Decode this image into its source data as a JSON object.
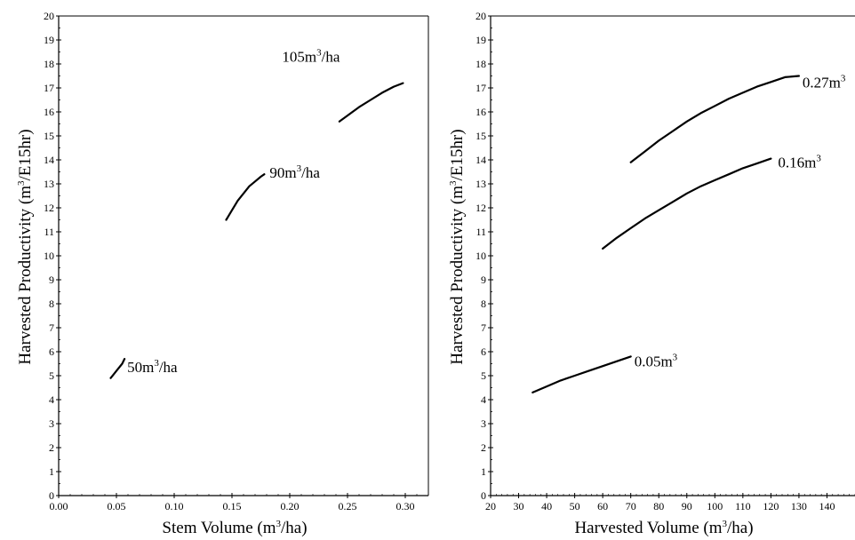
{
  "chart_data": [
    {
      "type": "line",
      "title": "",
      "xlabel": "Stem Volume (m",
      "xlabel_sup": "3",
      "xlabel_tail": "/ha)",
      "ylabel": "Harvested Productivity (m",
      "ylabel_sup": "3",
      "ylabel_tail": "/E15hr)",
      "xlim": [
        0.0,
        0.32
      ],
      "ylim": [
        0,
        20
      ],
      "x_ticks": [
        "0.00",
        "0.05",
        "0.10",
        "0.15",
        "0.20",
        "0.25",
        "0.30"
      ],
      "y_ticks": [
        "0",
        "1",
        "2",
        "3",
        "4",
        "5",
        "6",
        "7",
        "8",
        "9",
        "10",
        "11",
        "12",
        "13",
        "14",
        "15",
        "16",
        "17",
        "18",
        "19",
        "20"
      ],
      "grid": false,
      "series": [
        {
          "label": "50m",
          "label_sup": "3",
          "label_tail": "/ha",
          "x": [
            0.045,
            0.05,
            0.055,
            0.057
          ],
          "y": [
            4.9,
            5.2,
            5.5,
            5.7
          ]
        },
        {
          "label": "90m",
          "label_sup": "3",
          "label_tail": "/ha",
          "x": [
            0.145,
            0.15,
            0.155,
            0.16,
            0.165,
            0.17,
            0.175,
            0.178
          ],
          "y": [
            11.5,
            11.9,
            12.3,
            12.6,
            12.9,
            13.1,
            13.3,
            13.4
          ]
        },
        {
          "label": "105m",
          "label_sup": "3",
          "label_tail": "/ha",
          "x": [
            0.243,
            0.25,
            0.26,
            0.27,
            0.28,
            0.29,
            0.298
          ],
          "y": [
            15.6,
            15.85,
            16.2,
            16.5,
            16.8,
            17.05,
            17.2
          ]
        }
      ]
    },
    {
      "type": "line",
      "title": "",
      "xlabel": "Harvested Volume (m",
      "xlabel_sup": "3",
      "xlabel_tail": "/ha)",
      "ylabel": "Harvested Productivity (m",
      "ylabel_sup": "3",
      "ylabel_tail": "/E15hr)",
      "xlim": [
        20,
        150
      ],
      "ylim": [
        0,
        20
      ],
      "x_ticks": [
        "20",
        "30",
        "40",
        "50",
        "60",
        "70",
        "80",
        "90",
        "100",
        "110",
        "120",
        "130",
        "140"
      ],
      "y_ticks": [
        "0",
        "1",
        "2",
        "3",
        "4",
        "5",
        "6",
        "7",
        "8",
        "9",
        "10",
        "11",
        "12",
        "13",
        "14",
        "15",
        "16",
        "17",
        "18",
        "19",
        "20"
      ],
      "grid": false,
      "series": [
        {
          "label": "0.05m",
          "label_sup": "3",
          "label_tail": "",
          "x": [
            35,
            40,
            45,
            50,
            55,
            60,
            65,
            70
          ],
          "y": [
            4.3,
            4.55,
            4.8,
            5.0,
            5.2,
            5.4,
            5.6,
            5.8
          ]
        },
        {
          "label": "0.16m",
          "label_sup": "3",
          "label_tail": "",
          "x": [
            60,
            65,
            70,
            75,
            80,
            85,
            90,
            95,
            100,
            105,
            110,
            115,
            120
          ],
          "y": [
            10.3,
            10.75,
            11.15,
            11.55,
            11.9,
            12.25,
            12.6,
            12.9,
            13.15,
            13.4,
            13.65,
            13.85,
            14.05
          ]
        },
        {
          "label": "0.27m",
          "label_sup": "3",
          "label_tail": "",
          "x": [
            70,
            75,
            80,
            85,
            90,
            95,
            100,
            105,
            110,
            115,
            120,
            125,
            130
          ],
          "y": [
            13.9,
            14.35,
            14.8,
            15.2,
            15.6,
            15.95,
            16.25,
            16.55,
            16.8,
            17.05,
            17.25,
            17.45,
            17.5
          ]
        }
      ]
    }
  ]
}
